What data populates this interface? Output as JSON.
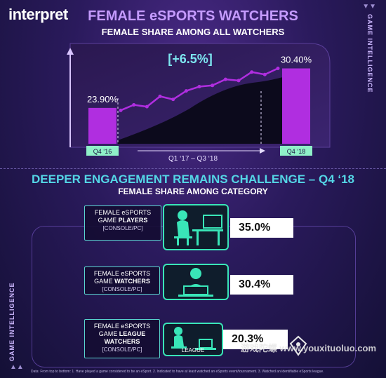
{
  "brand": {
    "logo": "interpret",
    "side_label": "GAME INTELLIGENCE"
  },
  "section1": {
    "title": "FEMALE eSPORTS WATCHERS",
    "subtitle": "FEMALE SHARE AMONG ALL WATCHERS",
    "change_label": "[+6.5%]",
    "period_label": "Q1 ‘17 – Q3 ‘18"
  },
  "section2": {
    "title": "DEEPER ENGAGEMENT REMAINS CHALLENGE – Q4 ‘18",
    "subtitle": "FEMALE SHARE AMONG CATEGORY",
    "categories": [
      {
        "line1": "FEMALE eSPORTS",
        "line2_prefix": "GAME ",
        "line2_bold": "PLAYERS",
        "line3": "",
        "sub": "[CONSOLE/PC]",
        "value": "35.0%",
        "icon": "gamer-at-desk-icon",
        "icon_label": ""
      },
      {
        "line1": "FEMALE eSPORTS",
        "line2_prefix": "GAME ",
        "line2_bold": "WATCHERS",
        "line3": "",
        "sub": "[CONSOLE/PC]",
        "value": "30.4%",
        "icon": "viewer-at-laptop-icon",
        "icon_label": ""
      },
      {
        "line1": "FEMALE eSPORTS",
        "line2_prefix": "GAME ",
        "line2_bold": "LEAGUE",
        "line3": "WATCHERS",
        "sub": "[CONSOLE/PC]",
        "value": "20.3%",
        "icon": "league-viewer-icon",
        "icon_label": "LEAGUE"
      }
    ]
  },
  "footnote": "Data: From top to bottom: 1. Have played a game considered to be an eSport. 2. Indicated to have at least watched an eSports event/tournament. 3. Watched an identifiable eSports league.",
  "watermark": "游戏陀螺 www.youxituoluo.com",
  "colors": {
    "accent_purple": "#b02ee0",
    "accent_teal": "#39e6b8",
    "title_purple": "#c59bff",
    "title_teal": "#54d6e6"
  },
  "chart_data": [
    {
      "type": "bar",
      "categories": [
        "Q4 ‘16",
        "Q4 ‘18"
      ],
      "values": [
        23.9,
        30.4
      ],
      "value_labels": [
        "23.90%",
        "30.40%"
      ],
      "title": "FEMALE eSPORTS WATCHERS",
      "subtitle": "FEMALE SHARE AMONG ALL WATCHERS",
      "trend_line": [
        23.5,
        24.4,
        24.1,
        25.8,
        25.3,
        26.7,
        27.4,
        27.6,
        28.6,
        28.4,
        29.8,
        29.4,
        30.4
      ],
      "annotation": "[+6.5%]",
      "ylim": [
        18,
        33
      ]
    },
    {
      "type": "bar",
      "categories": [
        "FEMALE eSPORTS GAME PLAYERS",
        "FEMALE eSPORTS GAME WATCHERS",
        "FEMALE eSPORTS GAME LEAGUE WATCHERS"
      ],
      "values": [
        35.0,
        30.4,
        20.3
      ],
      "value_labels": [
        "35.0%",
        "30.4%",
        "20.3%"
      ],
      "title": "FEMALE SHARE AMONG CATEGORY"
    }
  ]
}
